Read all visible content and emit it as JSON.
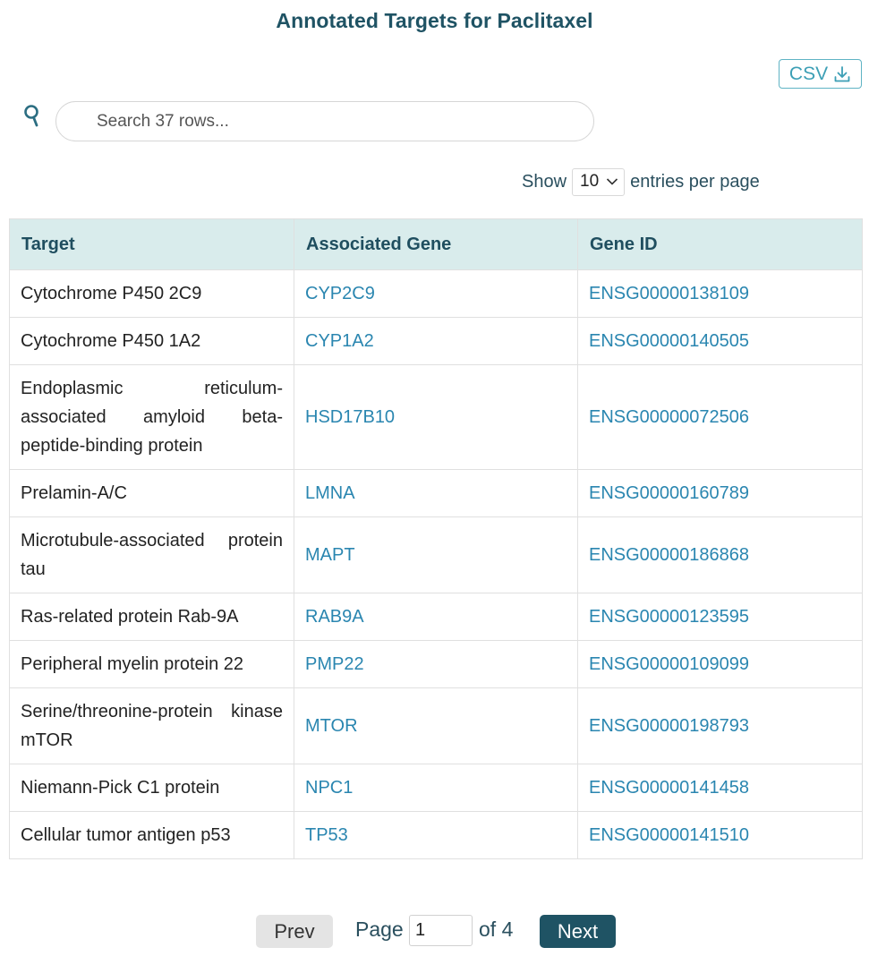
{
  "page": {
    "title": "Annotated Targets for Paclitaxel"
  },
  "toolbar": {
    "csv_label": "CSV",
    "csv_icon": "download-icon"
  },
  "search": {
    "icon": "search-icon",
    "placeholder": "Search 37 rows...",
    "value": ""
  },
  "page_size": {
    "prefix": "Show",
    "selected": "10",
    "suffix": "entries per page"
  },
  "table": {
    "columns": [
      "Target",
      "Associated Gene",
      "Gene ID"
    ],
    "rows": [
      {
        "target": "Cytochrome P450 2C9",
        "gene": "CYP2C9",
        "gene_id": "ENSG00000138109"
      },
      {
        "target": "Cytochrome P450 1A2",
        "gene": "CYP1A2",
        "gene_id": "ENSG00000140505"
      },
      {
        "target": "Endoplasmic reticulum-associated amyloid beta-peptide-binding protein",
        "gene": "HSD17B10",
        "gene_id": "ENSG00000072506"
      },
      {
        "target": "Prelamin-A/C",
        "gene": "LMNA",
        "gene_id": "ENSG00000160789"
      },
      {
        "target": "Microtubule-associated protein tau",
        "gene": "MAPT",
        "gene_id": "ENSG00000186868"
      },
      {
        "target": "Ras-related protein Rab-9A",
        "gene": "RAB9A",
        "gene_id": "ENSG00000123595"
      },
      {
        "target": "Peripheral myelin protein 22",
        "gene": "PMP22",
        "gene_id": "ENSG00000109099"
      },
      {
        "target": "Serine/threonine-protein kinase mTOR",
        "gene": "MTOR",
        "gene_id": "ENSG00000198793"
      },
      {
        "target": "Niemann-Pick C1 protein",
        "gene": "NPC1",
        "gene_id": "ENSG00000141458"
      },
      {
        "target": "Cellular tumor antigen p53",
        "gene": "TP53",
        "gene_id": "ENSG00000141510"
      }
    ]
  },
  "pagination": {
    "prev_label": "Prev",
    "page_label": "Page",
    "current_page": "1",
    "of_label": "of 4",
    "next_label": "Next"
  },
  "colors": {
    "title": "#1f5364",
    "header_bg": "#d9ecec",
    "link": "#2a86b0",
    "next_bg": "#1f5364"
  }
}
